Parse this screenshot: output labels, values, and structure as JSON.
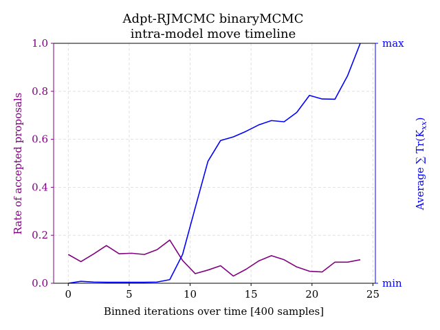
{
  "chart_data": {
    "type": "line",
    "title": "Adpt-RJMCMC binaryMCMC",
    "subtitle": "intra-model move timeline",
    "xlabel": "Binned iterations over time [400 samples]",
    "ylabel_left": "Rate of accepted proposals",
    "ylabel_right": "Average ∑ Tr(K",
    "ylabel_right_sub": "xx",
    "ylabel_right_close": ")",
    "xlim": [
      -1.2,
      25.2
    ],
    "ylim": [
      0,
      1
    ],
    "x_ticks": [
      0,
      5,
      10,
      15,
      20,
      25
    ],
    "y_ticks": [
      "0.0",
      "0.2",
      "0.4",
      "0.6",
      "0.8",
      "1.0"
    ],
    "y_ticks_right": [
      "min",
      "max"
    ],
    "grid": true,
    "colors": {
      "left": "#800080",
      "right": "#0000ff"
    },
    "series": [
      {
        "axis": "left",
        "color": "#800080",
        "x": [
          0,
          1.04,
          2.08,
          3.13,
          4.17,
          5.21,
          6.25,
          7.29,
          8.33,
          9.38,
          10.42,
          11.46,
          12.5,
          13.54,
          14.58,
          15.63,
          16.67,
          17.71,
          18.75,
          19.79,
          20.83,
          21.88,
          22.92,
          23.96
        ],
        "values": [
          0.12,
          0.09,
          0.122,
          0.157,
          0.123,
          0.125,
          0.12,
          0.14,
          0.18,
          0.095,
          0.04,
          0.055,
          0.073,
          0.03,
          0.058,
          0.093,
          0.115,
          0.098,
          0.068,
          0.05,
          0.047,
          0.088,
          0.088,
          0.098
        ]
      },
      {
        "axis": "right",
        "color": "#0000ff",
        "x": [
          0,
          1.04,
          2.08,
          3.13,
          4.17,
          5.21,
          6.25,
          7.29,
          8.33,
          9.38,
          10.42,
          11.46,
          12.5,
          13.54,
          14.58,
          15.63,
          16.67,
          17.71,
          18.75,
          19.79,
          20.83,
          21.88,
          22.92,
          23.96
        ],
        "values": [
          0.0,
          0.008,
          0.005,
          0.004,
          0.004,
          0.004,
          0.004,
          0.005,
          0.015,
          0.12,
          0.315,
          0.508,
          0.595,
          0.61,
          0.633,
          0.66,
          0.678,
          0.673,
          0.712,
          0.783,
          0.768,
          0.767,
          0.865,
          1.0
        ]
      }
    ]
  }
}
